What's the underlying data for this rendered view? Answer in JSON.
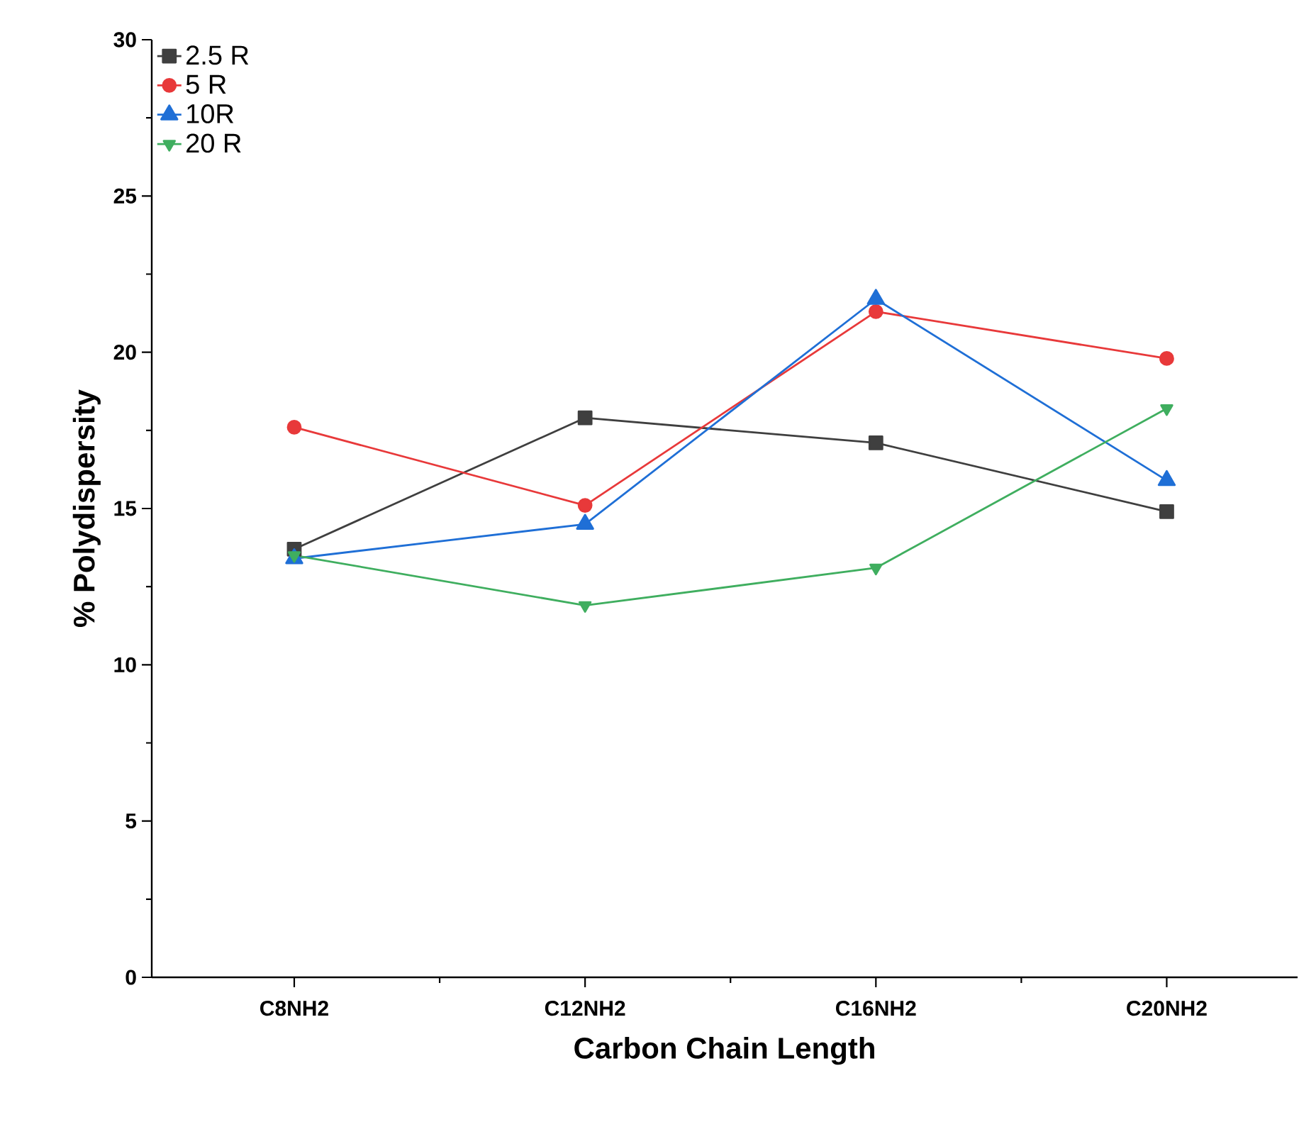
{
  "chart_data": {
    "type": "line",
    "xlabel": "Carbon Chain Length",
    "ylabel": "% Polydispersity",
    "categories": [
      "C8NH2",
      "C12NH2",
      "C16NH2",
      "C20NH2"
    ],
    "series": [
      {
        "name": "2.5 R",
        "color": "#3f3f3f",
        "marker": "square",
        "values": [
          13.7,
          17.9,
          17.1,
          14.9
        ]
      },
      {
        "name": "5 R",
        "color": "#e8393a",
        "marker": "circle",
        "values": [
          17.6,
          15.1,
          21.3,
          19.8
        ]
      },
      {
        "name": "10R",
        "color": "#1f6fd6",
        "marker": "triangle",
        "values": [
          13.4,
          14.5,
          21.7,
          15.9
        ]
      },
      {
        "name": "20 R",
        "color": "#3fae5f",
        "marker": "triangle-down",
        "values": [
          13.5,
          11.9,
          13.1,
          18.2
        ]
      }
    ],
    "ylim": [
      0,
      30
    ],
    "yticks": [
      0,
      5,
      10,
      15,
      20,
      25,
      30
    ],
    "grid": false,
    "legend": "top left",
    "line_style": "solid"
  }
}
